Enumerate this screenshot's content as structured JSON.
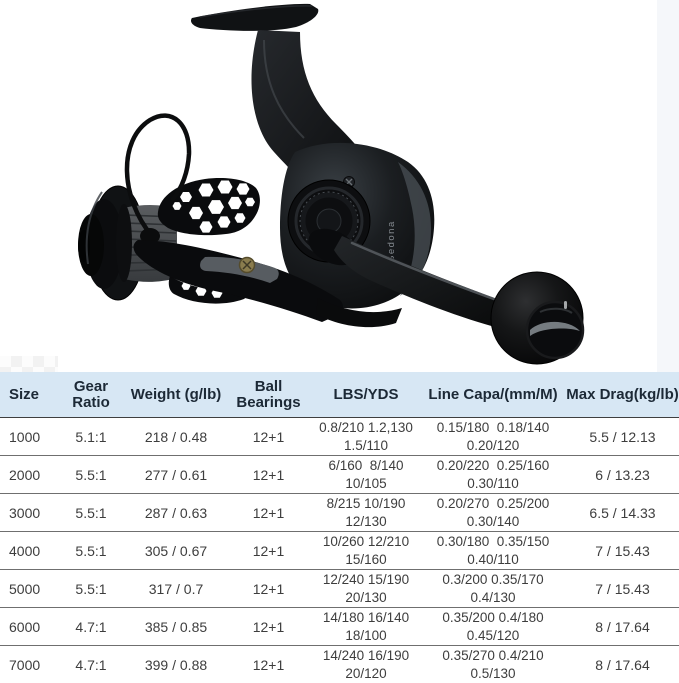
{
  "photo": {
    "brand_marking": "Sedona",
    "subject": "spinning-fishing-reel"
  },
  "colors": {
    "header_bg": "#d7e7f4",
    "header_text": "#1c2936",
    "row_text": "#3d3d3d",
    "row_border": "#6f6f6f",
    "reel_black": "#0b0c0e",
    "screw_gold": "#8a7c4e"
  },
  "table": {
    "keys": [
      "size",
      "gear_ratio",
      "weight",
      "ball_bearings",
      "lbs_yds",
      "line_capa",
      "max_drag"
    ],
    "headers": [
      "Size",
      "Gear Ratio",
      "Weight (g/lb)",
      "Ball Bearings",
      "LBS/YDS",
      "Line Capa/(mm/M)",
      "Max Drag(kg/lb)"
    ],
    "rows": [
      [
        "1000",
        "5.1:1",
        "218 / 0.48",
        "12+1",
        "0.8/210 1.2,130\n1.5/110",
        "0.15/180  0.18/140\n0.20/120",
        "5.5 / 12.13"
      ],
      [
        "2000",
        "5.5:1",
        "277 / 0.61",
        "12+1",
        "6/160  8/140\n10/105",
        "0.20/220  0.25/160\n0.30/110",
        "6 / 13.23"
      ],
      [
        "3000",
        "5.5:1",
        "287 / 0.63",
        "12+1",
        "8/215 10/190\n12/130",
        "0.20/270  0.25/200\n0.30/140",
        "6.5 / 14.33"
      ],
      [
        "4000",
        "5.5:1",
        "305 / 0.67",
        "12+1",
        "10/260 12/210\n15/160",
        "0.30/180  0.35/150\n0.40/110",
        "7 / 15.43"
      ],
      [
        "5000",
        "5.5:1",
        "317 / 0.7",
        "12+1",
        "12/240 15/190\n20/130",
        "0.3/200 0.35/170\n0.4/130",
        "7 / 15.43"
      ],
      [
        "6000",
        "4.7:1",
        "385 / 0.85",
        "12+1",
        "14/180 16/140\n18/100",
        "0.35/200 0.4/180\n0.45/120",
        "8 / 17.64"
      ],
      [
        "7000",
        "4.7:1",
        "399 / 0.88",
        "12+1",
        "14/240 16/190\n20/120",
        "0.35/270 0.4/210\n0.5/130",
        "8 / 17.64"
      ]
    ]
  }
}
